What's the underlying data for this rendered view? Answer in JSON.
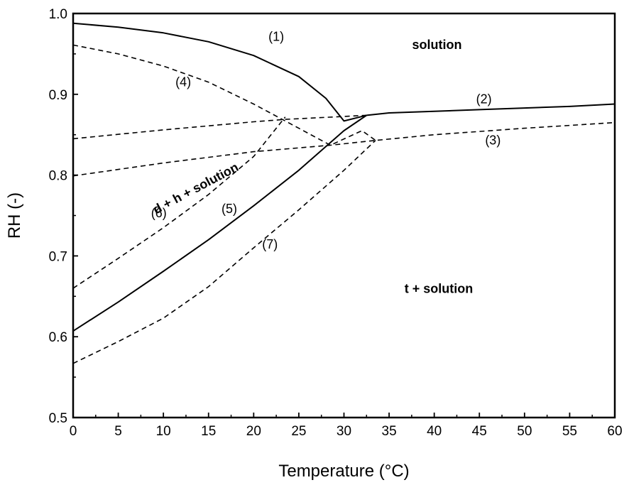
{
  "chart_data": {
    "type": "line",
    "title": "",
    "xlabel": "Temperature (°C)",
    "ylabel": "RH (-)",
    "xlim": [
      0,
      60
    ],
    "ylim": [
      0.5,
      1.0
    ],
    "xticks": [
      0,
      5,
      10,
      15,
      20,
      25,
      30,
      35,
      40,
      45,
      50,
      55,
      60
    ],
    "yticks": [
      0.5,
      0.6,
      0.7,
      0.8,
      0.9,
      1.0
    ],
    "xtick_labels": [
      "0",
      "5",
      "10",
      "15",
      "20",
      "25",
      "30",
      "35",
      "40",
      "45",
      "50",
      "55",
      "60"
    ],
    "ytick_labels": [
      "0.5",
      "0.6",
      "0.7",
      "0.8",
      "0.9",
      "1.0"
    ],
    "grid": false,
    "series": [
      {
        "name": "(1)",
        "style": "solid",
        "x": [
          0,
          5,
          10,
          15,
          20,
          25,
          28,
          30,
          32.5
        ],
        "y": [
          0.988,
          0.983,
          0.976,
          0.965,
          0.948,
          0.922,
          0.895,
          0.867,
          0.874
        ]
      },
      {
        "name": "(2)",
        "style": "solid",
        "x": [
          32.5,
          35,
          40,
          45,
          50,
          55,
          60
        ],
        "y": [
          0.874,
          0.877,
          0.879,
          0.881,
          0.883,
          0.885,
          0.888
        ]
      },
      {
        "name": "(3)",
        "style": "dashed",
        "x": [
          0,
          10,
          20,
          28.5,
          33.5,
          40,
          50,
          60
        ],
        "y": [
          0.799,
          0.815,
          0.829,
          0.837,
          0.843,
          0.85,
          0.858,
          0.865
        ]
      },
      {
        "name": "(4)",
        "style": "dashed",
        "x": [
          0,
          5,
          10,
          15,
          20,
          25,
          28.5,
          32,
          33.5
        ],
        "y": [
          0.961,
          0.95,
          0.935,
          0.915,
          0.888,
          0.858,
          0.837,
          0.855,
          0.843
        ]
      },
      {
        "name": "(5)",
        "style": "solid",
        "x": [
          0,
          5,
          10,
          15,
          20,
          25,
          30,
          32.5
        ],
        "y": [
          0.607,
          0.643,
          0.681,
          0.72,
          0.762,
          0.806,
          0.855,
          0.874
        ]
      },
      {
        "name": "(6)",
        "style": "dashed",
        "x": [
          0,
          5,
          10,
          15,
          20,
          23.5
        ],
        "y": [
          0.66,
          0.697,
          0.735,
          0.776,
          0.823,
          0.872
        ]
      },
      {
        "name": "(7)",
        "style": "dashed",
        "x": [
          0,
          5,
          10,
          15,
          20,
          25,
          30,
          33.5
        ],
        "y": [
          0.567,
          0.594,
          0.623,
          0.662,
          0.71,
          0.757,
          0.806,
          0.843
        ]
      },
      {
        "name": "",
        "style": "dashed",
        "x": [
          0,
          10,
          20,
          23.5,
          32.5
        ],
        "y": [
          0.845,
          0.856,
          0.866,
          0.869,
          0.874
        ]
      }
    ],
    "curve_labels": [
      {
        "text": "(1)",
        "x": 22.5,
        "y": 0.966
      },
      {
        "text": "(2)",
        "x": 45.5,
        "y": 0.889
      },
      {
        "text": "(3)",
        "x": 46.5,
        "y": 0.838
      },
      {
        "text": "(4)",
        "x": 12.2,
        "y": 0.91
      },
      {
        "text": "(5)",
        "x": 17.3,
        "y": 0.753
      },
      {
        "text": "(6)",
        "x": 9.5,
        "y": 0.748
      },
      {
        "text": "(7)",
        "x": 21.8,
        "y": 0.709
      }
    ],
    "region_labels": [
      {
        "text": "solution",
        "x": 40.3,
        "y": 0.956,
        "rotation": 0
      },
      {
        "text": "t + solution",
        "x": 40.5,
        "y": 0.654,
        "rotation": 0
      },
      {
        "text": "d + h + solution",
        "x": 13.8,
        "y": 0.779,
        "rotation": -28
      }
    ],
    "colors": {
      "line": "#000000",
      "axis": "#000000",
      "background": "#ffffff"
    }
  }
}
